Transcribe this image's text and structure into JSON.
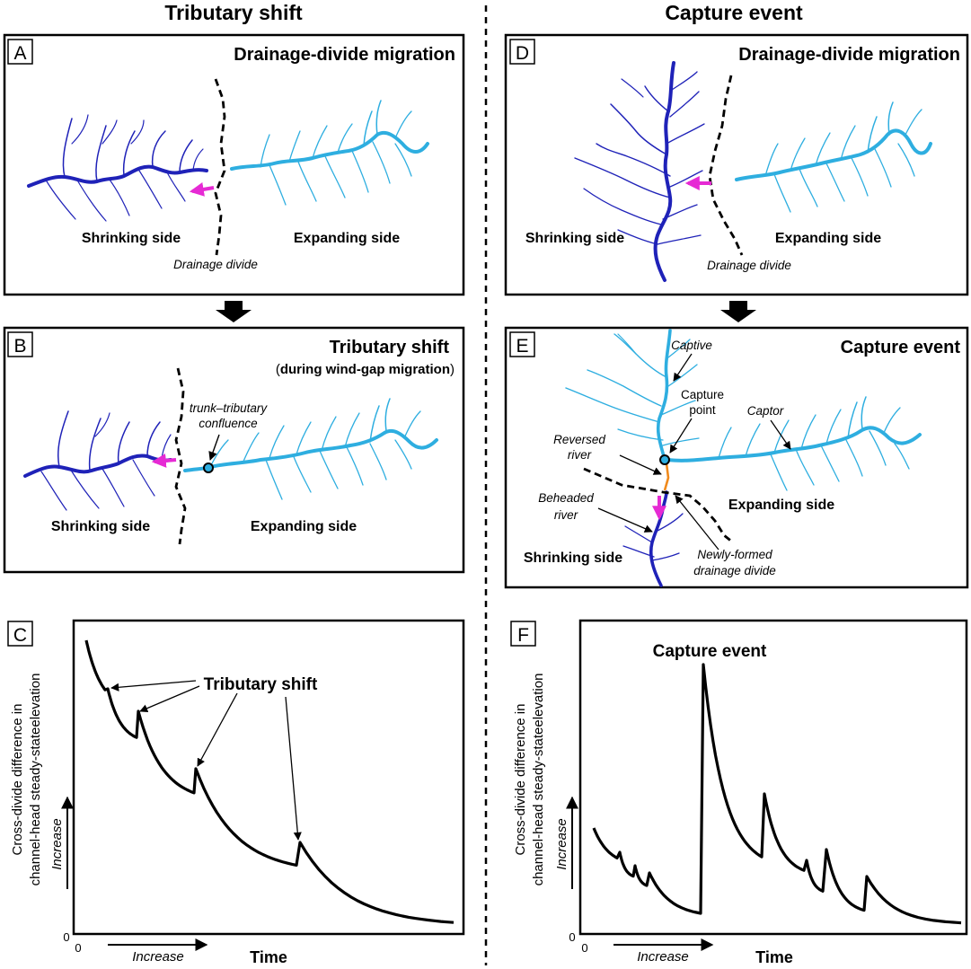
{
  "columns": {
    "left_title": "Tributary shift",
    "right_title": "Capture event"
  },
  "panels": {
    "A": {
      "letter": "A",
      "title": "Drainage-divide migration",
      "shrinking": "Shrinking side",
      "expanding": "Expanding side",
      "divide": "Drainage divide"
    },
    "B": {
      "letter": "B",
      "title": "Tributary shift",
      "subtitle_open": "(",
      "subtitle_bold": "during wind-gap migration",
      "subtitle_close": ")",
      "confluence_line1": "trunk–tributary",
      "confluence_line2": "confluence",
      "shrinking": "Shrinking side",
      "expanding": "Expanding side"
    },
    "C": {
      "letter": "C",
      "annotation": "Tributary shift",
      "ylabel_line1": "Cross-divide difference in",
      "ylabel_line2": "channel-head steady-stateelevation",
      "y_increase": "Increase",
      "x_increase": "Increase",
      "xlabel": "Time",
      "y_zero": "0",
      "x_zero": "0"
    },
    "D": {
      "letter": "D",
      "title": "Drainage-divide migration",
      "shrinking": "Shrinking side",
      "expanding": "Expanding side",
      "divide": "Drainage divide"
    },
    "E": {
      "letter": "E",
      "title": "Capture event",
      "captive": "Captive",
      "capture_point_line1": "Capture",
      "capture_point_line2": "point",
      "captor": "Captor",
      "reversed_line1": "Reversed",
      "reversed_line2": "river",
      "beheaded_line1": "Beheaded",
      "beheaded_line2": "river",
      "newdivide_line1": "Newly-formed",
      "newdivide_line2": "drainage divide",
      "shrinking": "Shrinking side",
      "expanding": "Expanding side"
    },
    "F": {
      "letter": "F",
      "annotation": "Capture event",
      "ylabel_line1": "Cross-divide difference in",
      "ylabel_line2": "channel-head steady-stateelevation",
      "y_increase": "Increase",
      "x_increase": "Increase",
      "xlabel": "Time",
      "y_zero": "0",
      "x_zero": "0"
    }
  },
  "colors": {
    "shrinking_river": "#1f22b8",
    "expanding_river": "#2eaee0",
    "migration_arrow": "#e62ad4",
    "reversed_river": "#f08a1c",
    "ink": "#000000"
  },
  "chart_data": [
    {
      "type": "line",
      "panel": "C",
      "xlabel": "Time",
      "ylabel": "Cross-divide difference in channel-head steady-stateelevation",
      "note": "Sawtooth decay; each abrupt small rise is a tributary shift",
      "events": [
        "Tributary shift",
        "Tributary shift",
        "Tributary shift",
        "Tributary shift"
      ]
    },
    {
      "type": "line",
      "panel": "F",
      "xlabel": "Time",
      "ylabel": "Cross-divide difference in channel-head steady-stateelevation",
      "note": "Small rises followed by one large rise at the capture event, then decays with smaller rises",
      "events": [
        "Capture event"
      ]
    }
  ]
}
